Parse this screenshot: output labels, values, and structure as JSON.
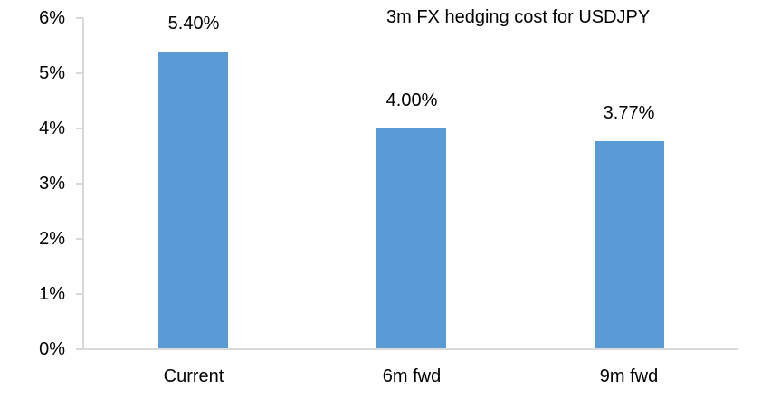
{
  "chart_data": {
    "type": "bar",
    "title": "3m FX hedging cost for USDJPY",
    "categories": [
      "Current",
      "6m fwd",
      "9m fwd"
    ],
    "values": [
      5.4,
      4.0,
      3.77
    ],
    "data_labels": [
      "5.40%",
      "4.00%",
      "3.77%"
    ],
    "ylim": [
      0,
      6
    ],
    "ytick_step": 1,
    "ytick_labels": [
      "0%",
      "1%",
      "2%",
      "3%",
      "4%",
      "5%",
      "6%"
    ],
    "xlabel": "",
    "ylabel": "",
    "grid": false,
    "legend": "none",
    "bar_color": "#5B9BD5",
    "axis_color": "#D9D9D9",
    "text_color": "#000000",
    "background_color": "#FFFFFF"
  }
}
